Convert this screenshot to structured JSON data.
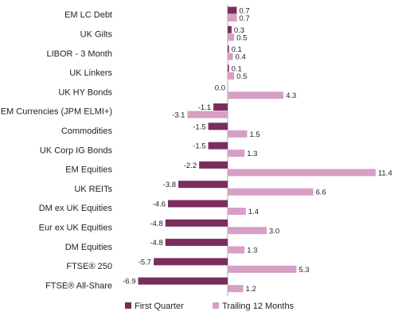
{
  "chart_data": {
    "type": "bar",
    "orientation": "horizontal",
    "categories": [
      "EM LC Debt",
      "UK Gilts",
      "LIBOR - 3 Month",
      "UK Linkers",
      "UK HY Bonds",
      "EM Currencies (JPM ELMI+)",
      "Commodities",
      "UK Corp IG Bonds",
      "EM Equities",
      "UK REITs",
      "DM ex UK Equities",
      "Eur ex UK Equities",
      "DM Equities",
      "FTSE® 250",
      "FTSE® All-Share"
    ],
    "series": [
      {
        "name": "First Quarter",
        "color": "#7b2d5e",
        "values": [
          0.7,
          0.3,
          0.1,
          0.1,
          0.0,
          -1.1,
          -1.5,
          -1.5,
          -2.2,
          -3.8,
          -4.6,
          -4.8,
          -4.8,
          -5.7,
          -6.9
        ],
        "labels": [
          "0.7",
          "0.3",
          "0.1",
          "0.1",
          "0.0",
          "-1.1",
          "-1.5",
          "-1.5",
          "-2.2",
          "-3.8",
          "-4.6",
          "-4.8",
          "-4.8",
          "-5.7",
          "-6.9"
        ]
      },
      {
        "name": "Trailing 12 Months",
        "color": "#d79fc4",
        "values": [
          0.7,
          0.5,
          0.4,
          0.5,
          4.3,
          -3.1,
          1.5,
          1.3,
          11.4,
          6.6,
          1.4,
          3.0,
          1.3,
          5.3,
          1.2
        ],
        "labels": [
          "0.7",
          "0.5",
          "0.4",
          "0.5",
          "4.3",
          "-3.1",
          "1.5",
          "1.3",
          "11.4",
          "6.6",
          "1.4",
          "3.0",
          "1.3",
          "5.3",
          "1.2"
        ]
      }
    ],
    "xlim": [
      -7.5,
      12.2
    ],
    "grid": false,
    "legend_position": "bottom"
  }
}
